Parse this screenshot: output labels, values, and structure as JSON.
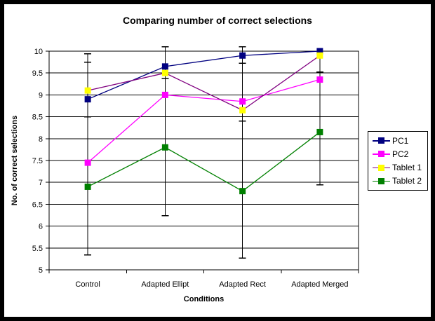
{
  "chart_data": {
    "type": "line",
    "title": "Comparing number of correct selections",
    "xlabel": "Conditions",
    "ylabel": "No. of correct selections",
    "categories": [
      "Control",
      "Adapted Ellipt",
      "Adapted Rect",
      "Adapted Merged"
    ],
    "series": [
      {
        "name": "PC1",
        "line_color": "#000080",
        "marker_color": "#000080",
        "values": [
          8.9,
          9.65,
          9.9,
          10.0
        ]
      },
      {
        "name": "PC2",
        "line_color": "#FF00FF",
        "marker_color": "#FF00FF",
        "values": [
          7.45,
          9.0,
          8.85,
          9.35
        ]
      },
      {
        "name": "Tablet 1",
        "line_color": "#800080",
        "marker_color": "#FFFF00",
        "values": [
          9.1,
          9.5,
          8.65,
          9.9
        ]
      },
      {
        "name": "Tablet 2",
        "line_color": "#008000",
        "marker_color": "#008000",
        "values": [
          6.9,
          7.8,
          6.8,
          8.15
        ]
      }
    ],
    "ylim": [
      5,
      10
    ],
    "ytick_step": 0.5,
    "yticks": [
      "5",
      "5.5",
      "6",
      "6.5",
      "7",
      "7.5",
      "8",
      "8.5",
      "9",
      "9.5",
      "10"
    ],
    "grid": "horizontal",
    "legend_position": "right",
    "error_bars": [
      {
        "category": "Control",
        "extent": [
          5.34,
          9.94
        ],
        "caps": [
          9.94,
          9.75,
          8.5,
          5.34
        ]
      },
      {
        "category": "Adapted Ellipt",
        "extent": [
          6.24,
          10.1
        ],
        "caps": [
          10.1,
          9.38,
          6.24
        ]
      },
      {
        "category": "Adapted Rect",
        "extent": [
          5.27,
          10.1
        ],
        "caps": [
          10.1,
          9.72,
          8.4,
          5.27
        ]
      },
      {
        "category": "Adapted Merged",
        "extent": [
          6.94,
          9.9
        ],
        "caps": [
          9.52,
          6.94
        ]
      }
    ],
    "colors": {
      "axis": "#000000",
      "grid": "#000000",
      "error_bar": "#000000",
      "background": "#FFFFFF",
      "frame": "#000000"
    }
  }
}
